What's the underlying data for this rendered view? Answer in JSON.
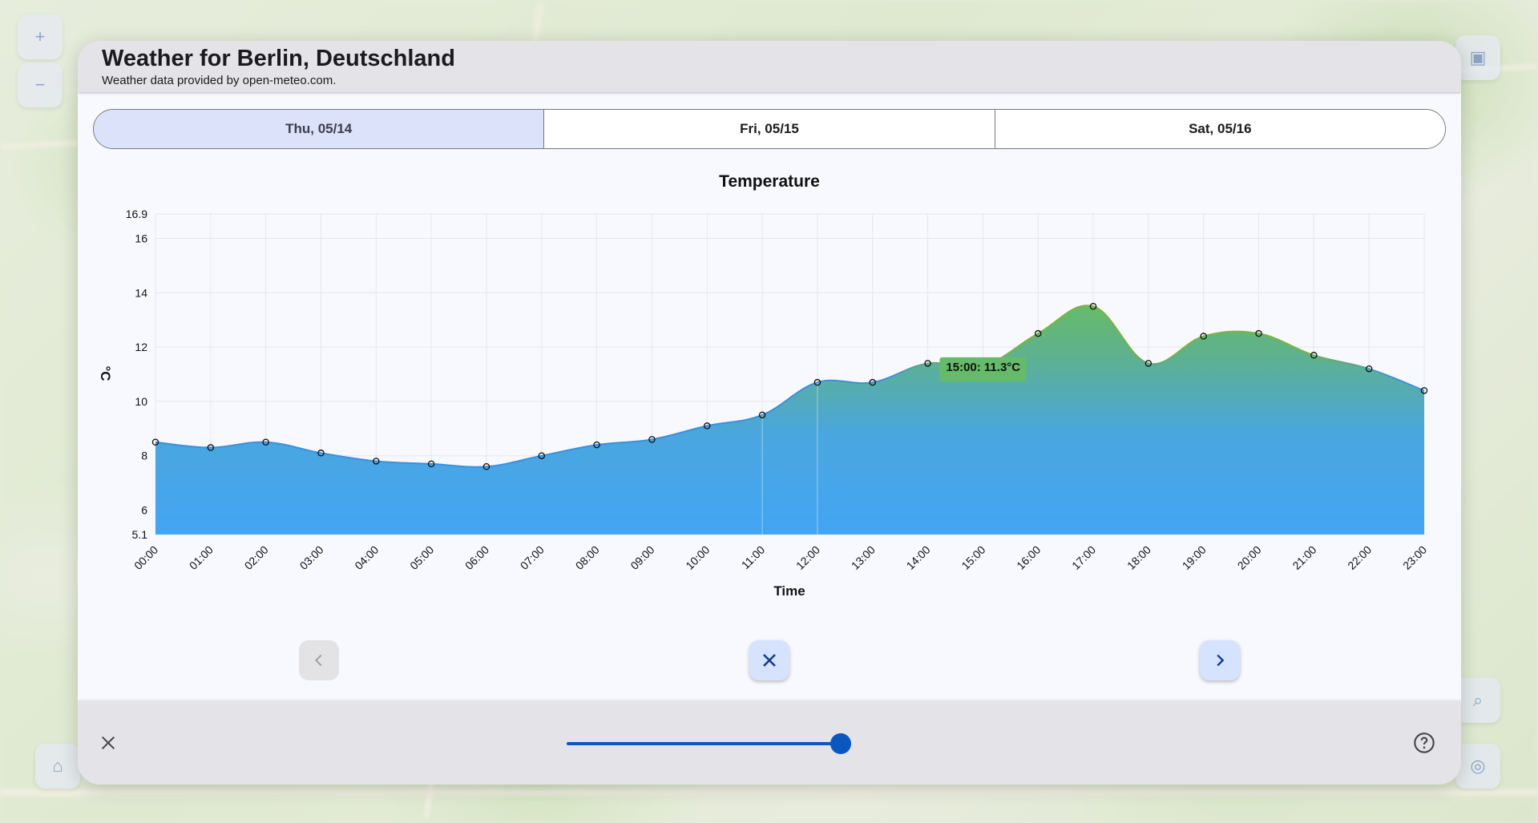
{
  "header": {
    "title": "Weather for Berlin, Deutschland",
    "subtitle": "Weather data provided by open-meteo.com."
  },
  "tabs": [
    {
      "label": "Thu, 05/14",
      "selected": true
    },
    {
      "label": "Fri, 05/15",
      "selected": false
    },
    {
      "label": "Sat, 05/16",
      "selected": false
    }
  ],
  "chart_data": {
    "type": "area",
    "title": "Temperature",
    "xlabel": "Time",
    "ylabel": "°C",
    "x": [
      "00:00",
      "01:00",
      "02:00",
      "03:00",
      "04:00",
      "05:00",
      "06:00",
      "07:00",
      "08:00",
      "09:00",
      "10:00",
      "11:00",
      "12:00",
      "13:00",
      "14:00",
      "15:00",
      "16:00",
      "17:00",
      "18:00",
      "19:00",
      "20:00",
      "21:00",
      "22:00",
      "23:00"
    ],
    "values": [
      8.5,
      8.3,
      8.5,
      8.1,
      7.8,
      7.7,
      7.6,
      8.0,
      8.4,
      8.6,
      9.1,
      9.5,
      10.7,
      10.7,
      11.4,
      11.3,
      12.5,
      13.5,
      11.4,
      12.4,
      12.5,
      11.7,
      11.2,
      10.4
    ],
    "ylim": [
      5.1,
      16.9
    ],
    "yticks": [
      5.1,
      6,
      8,
      10,
      12,
      14,
      16,
      16.9
    ],
    "highlight_label": "15:00: 11.3°C",
    "grid": true,
    "colors": {
      "low": "#42a5f5",
      "high": "#66bb6a",
      "line_low": "#3b8fe0",
      "line_high": "#7cb342"
    }
  },
  "controls": {
    "prev_icon": "chevron-left-icon",
    "close_icon": "close-icon",
    "next_icon": "chevron-right-icon",
    "slider_value": 1.0,
    "help_icon": "help-circle-icon",
    "accent": "#0b57c0"
  }
}
